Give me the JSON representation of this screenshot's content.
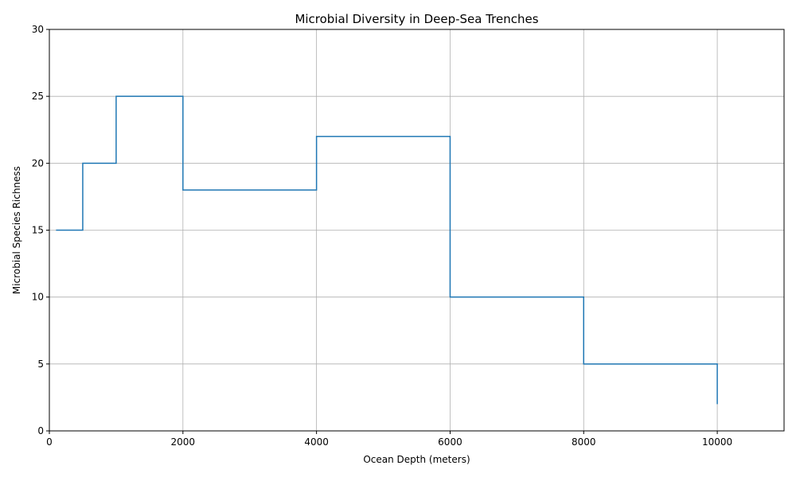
{
  "chart_data": {
    "type": "line",
    "step": "post",
    "title": "Microbial Diversity in Deep-Sea Trenches",
    "xlabel": "Ocean Depth (meters)",
    "ylabel": "Microbial Species Richness",
    "xlim": [
      0,
      11000
    ],
    "ylim": [
      0,
      30
    ],
    "xticks": [
      0,
      2000,
      4000,
      6000,
      8000,
      10000
    ],
    "yticks": [
      0,
      5,
      10,
      15,
      20,
      25,
      30
    ],
    "grid": true,
    "series": [
      {
        "color": "#1f77b4",
        "x": [
          100,
          500,
          1000,
          2000,
          4000,
          6000,
          8000,
          10000
        ],
        "y": [
          15,
          20,
          25,
          18,
          22,
          10,
          5,
          2
        ]
      }
    ]
  }
}
